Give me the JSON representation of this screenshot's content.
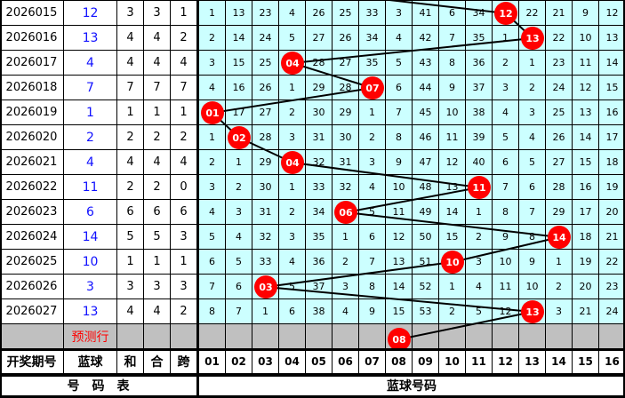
{
  "rows": [
    {
      "issue": "2026015",
      "blue": "12",
      "sum": "3",
      "he": "3",
      "kua": "1",
      "cells": [
        "1",
        "13",
        "23",
        "4",
        "26",
        "25",
        "33",
        "3",
        "41",
        "6",
        "34",
        "12",
        "22",
        "21",
        "9",
        "12"
      ]
    },
    {
      "issue": "2026016",
      "blue": "13",
      "sum": "4",
      "he": "4",
      "kua": "2",
      "cells": [
        "2",
        "14",
        "24",
        "5",
        "27",
        "26",
        "34",
        "4",
        "42",
        "7",
        "35",
        "1",
        "13",
        "22",
        "10",
        "13"
      ]
    },
    {
      "issue": "2026017",
      "blue": "4",
      "sum": "4",
      "he": "4",
      "kua": "4",
      "cells": [
        "3",
        "15",
        "25",
        "04",
        "28",
        "27",
        "35",
        "5",
        "43",
        "8",
        "36",
        "2",
        "1",
        "23",
        "11",
        "14"
      ]
    },
    {
      "issue": "2026018",
      "blue": "7",
      "sum": "7",
      "he": "7",
      "kua": "7",
      "cells": [
        "4",
        "16",
        "26",
        "1",
        "29",
        "28",
        "07",
        "6",
        "44",
        "9",
        "37",
        "3",
        "2",
        "24",
        "12",
        "15"
      ]
    },
    {
      "issue": "2026019",
      "blue": "1",
      "sum": "1",
      "he": "1",
      "kua": "1",
      "cells": [
        "01",
        "17",
        "27",
        "2",
        "30",
        "29",
        "1",
        "7",
        "45",
        "10",
        "38",
        "4",
        "3",
        "25",
        "13",
        "16"
      ]
    },
    {
      "issue": "2026020",
      "blue": "2",
      "sum": "2",
      "he": "2",
      "kua": "2",
      "cells": [
        "1",
        "02",
        "28",
        "3",
        "31",
        "30",
        "2",
        "8",
        "46",
        "11",
        "39",
        "5",
        "4",
        "26",
        "14",
        "17"
      ]
    },
    {
      "issue": "2026021",
      "blue": "4",
      "sum": "4",
      "he": "4",
      "kua": "4",
      "cells": [
        "2",
        "1",
        "29",
        "04",
        "32",
        "31",
        "3",
        "9",
        "47",
        "12",
        "40",
        "6",
        "5",
        "27",
        "15",
        "18"
      ]
    },
    {
      "issue": "2026022",
      "blue": "11",
      "sum": "2",
      "he": "2",
      "kua": "0",
      "cells": [
        "3",
        "2",
        "30",
        "1",
        "33",
        "32",
        "4",
        "10",
        "48",
        "13",
        "11",
        "7",
        "6",
        "28",
        "16",
        "19"
      ]
    },
    {
      "issue": "2026023",
      "blue": "6",
      "sum": "6",
      "he": "6",
      "kua": "6",
      "cells": [
        "4",
        "3",
        "31",
        "2",
        "34",
        "06",
        "5",
        "11",
        "49",
        "14",
        "1",
        "8",
        "7",
        "29",
        "17",
        "20"
      ]
    },
    {
      "issue": "2026024",
      "blue": "14",
      "sum": "5",
      "he": "5",
      "kua": "3",
      "cells": [
        "5",
        "4",
        "32",
        "3",
        "35",
        "1",
        "6",
        "12",
        "50",
        "15",
        "2",
        "9",
        "8",
        "14",
        "18",
        "21"
      ]
    },
    {
      "issue": "2026025",
      "blue": "10",
      "sum": "1",
      "he": "1",
      "kua": "1",
      "cells": [
        "6",
        "5",
        "33",
        "4",
        "36",
        "2",
        "7",
        "13",
        "51",
        "10",
        "3",
        "10",
        "9",
        "1",
        "19",
        "22"
      ]
    },
    {
      "issue": "2026026",
      "blue": "3",
      "sum": "3",
      "he": "3",
      "kua": "3",
      "cells": [
        "7",
        "6",
        "03",
        "5",
        "37",
        "3",
        "8",
        "14",
        "52",
        "1",
        "4",
        "11",
        "10",
        "2",
        "20",
        "23"
      ]
    },
    {
      "issue": "2026027",
      "blue": "13",
      "sum": "4",
      "he": "4",
      "kua": "2",
      "cells": [
        "8",
        "7",
        "1",
        "6",
        "38",
        "4",
        "9",
        "15",
        "53",
        "2",
        "5",
        "12",
        "13",
        "3",
        "21",
        "24"
      ]
    }
  ],
  "prediction": {
    "label": "预测行",
    "ball": "08"
  },
  "header": {
    "issue": "开奖期号",
    "blue": "蓝球",
    "sum": "和",
    "he": "合",
    "kua": "跨",
    "cols": [
      "01",
      "02",
      "03",
      "04",
      "05",
      "06",
      "07",
      "08",
      "09",
      "10",
      "11",
      "12",
      "13",
      "14",
      "15",
      "16"
    ]
  },
  "footer": {
    "left": "号　码　表",
    "right": "蓝球号码"
  },
  "colors": {
    "cell_bg": "#ccffff",
    "ball": "#ff0000",
    "blue_text": "#1010ff",
    "prediction_bg": "#c0c0c0",
    "prediction_text": "#ff0000"
  }
}
